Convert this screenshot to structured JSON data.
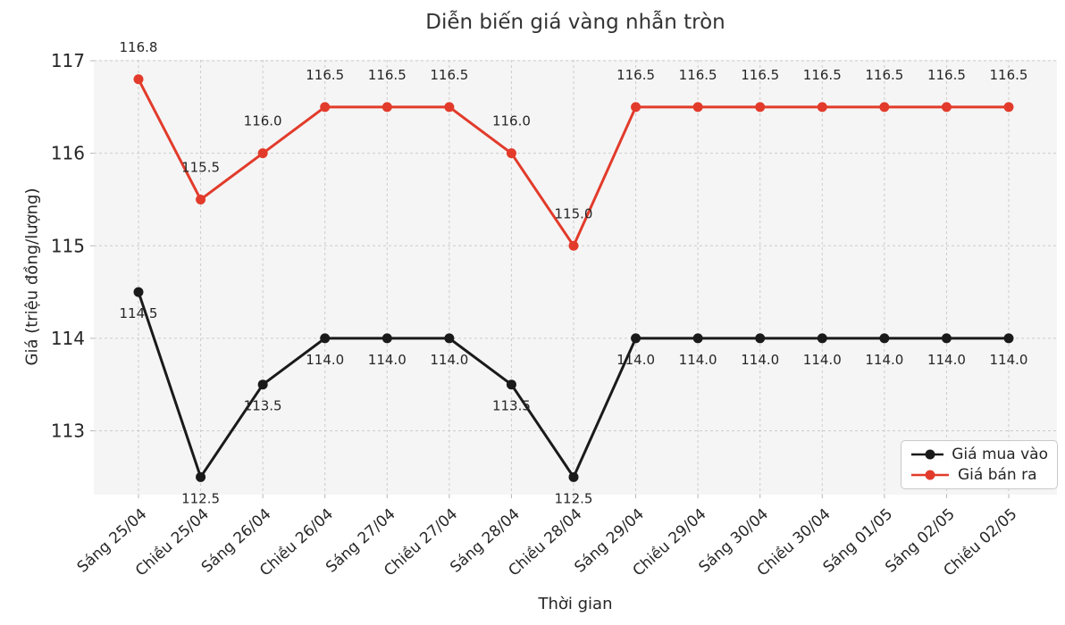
{
  "title": "Diễn biến giá vàng nhẫn tròn",
  "colors": {
    "plot_background": "#f5f5f5",
    "grid": "#cccccc",
    "axis_text": "#262626",
    "title_text": "#333333",
    "buy_line": "#1a1a1a",
    "sell_line": "#e23b2b",
    "buy_label": "#262626",
    "sell_label": "#e23b2b",
    "legend_border": "#c9c9c9"
  },
  "chart_data": {
    "type": "line",
    "title": "Diễn biến giá vàng nhẫn tròn",
    "xlabel": "Thời gian",
    "ylabel": "Giá (triệu đồng/lượng)",
    "categories": [
      "Sáng 25/04",
      "Chiều 25/04",
      "Sáng 26/04",
      "Chiều 26/04",
      "Sáng 27/04",
      "Chiều 27/04",
      "Sáng 28/04",
      "Chiều 28/04",
      "Sáng 29/04",
      "Chiều 29/04",
      "Sáng 30/04",
      "Chiều 30/04",
      "Sáng 01/05",
      "Sáng 02/05",
      "Chiều 02/05"
    ],
    "yticks": [
      113,
      114,
      115,
      116,
      117
    ],
    "ylim": [
      112.31,
      117.01
    ],
    "grid": true,
    "grid_style": "dashed",
    "legend_position": "lower right",
    "series": [
      {
        "name": "Giá mua vào",
        "color": "#1a1a1a",
        "label_color": "#262626",
        "label_side": "below",
        "values": [
          114.5,
          112.5,
          113.5,
          114.0,
          114.0,
          114.0,
          113.5,
          112.5,
          114.0,
          114.0,
          114.0,
          114.0,
          114.0,
          114.0,
          114.0
        ]
      },
      {
        "name": "Giá bán ra",
        "color": "#e23b2b",
        "label_color": "#e23b2b",
        "label_side": "above",
        "values": [
          116.8,
          115.5,
          116.0,
          116.5,
          116.5,
          116.5,
          116.0,
          115.0,
          116.5,
          116.5,
          116.5,
          116.5,
          116.5,
          116.5,
          116.5
        ]
      }
    ]
  }
}
